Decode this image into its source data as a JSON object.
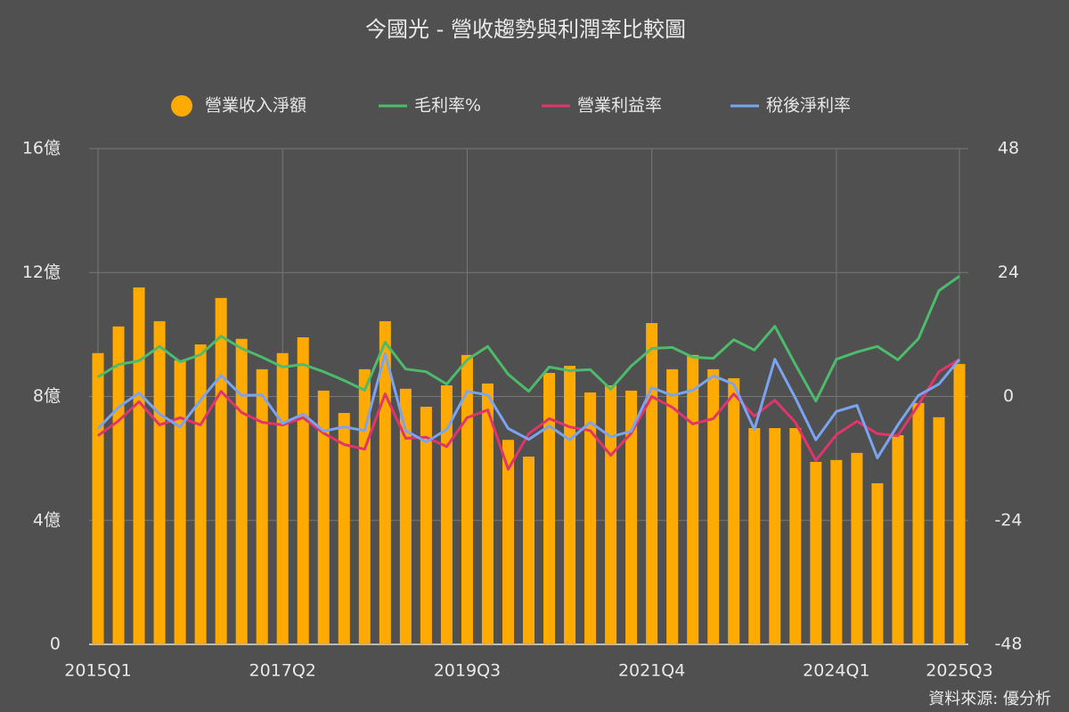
{
  "chart_data": {
    "type": "bar",
    "title": "今國光 - 營收趨勢與利潤率比較圖",
    "source": "資料來源: 優分析",
    "categories": [
      "2015Q1",
      null,
      null,
      null,
      null,
      null,
      null,
      null,
      null,
      "2017Q2",
      null,
      null,
      null,
      null,
      null,
      null,
      null,
      null,
      "2019Q3",
      null,
      null,
      null,
      null,
      null,
      null,
      null,
      null,
      "2021Q4",
      null,
      null,
      null,
      null,
      null,
      null,
      null,
      null,
      "2024Q1",
      null,
      null,
      null,
      null,
      null,
      "2025Q3"
    ],
    "ylim": [
      0,
      16
    ],
    "yticks": [
      0,
      {
        "value": 4,
        "label": "4億"
      },
      {
        "value": 8,
        "label": "8億"
      },
      {
        "value": 12,
        "label": "12億"
      },
      {
        "value": 16,
        "label": "16億"
      }
    ],
    "y2lim": [
      -48,
      48
    ],
    "y2ticks": [
      -48,
      -24,
      0,
      24,
      48
    ],
    "grid": true,
    "legend": "top",
    "series": [
      {
        "name": "營業收入淨額",
        "type": "bar",
        "color": "#ffaa00",
        "axis": "y",
        "values": [
          9.4,
          10.26,
          11.52,
          10.43,
          9.17,
          9.68,
          11.18,
          9.86,
          8.88,
          9.4,
          9.91,
          8.19,
          7.47,
          8.88,
          10.43,
          8.25,
          7.67,
          8.36,
          9.34,
          8.42,
          6.6,
          6.06,
          8.76,
          8.99,
          8.13,
          8.36,
          8.19,
          10.37,
          8.88,
          9.34,
          8.88,
          8.59,
          6.98,
          6.98,
          6.98,
          5.89,
          5.95,
          6.18,
          5.2,
          6.75,
          7.79,
          7.33,
          9.05
        ]
      },
      {
        "name": "毛利率%",
        "type": "line",
        "color": "#4cbb6c",
        "axis": "y2",
        "values": [
          3.8,
          6.2,
          6.9,
          9.7,
          6.7,
          8.1,
          11.7,
          9.3,
          7.6,
          5.7,
          6.2,
          4.8,
          3.1,
          1.2,
          10.5,
          5.3,
          4.8,
          2.4,
          7.1,
          9.7,
          4.3,
          1.0,
          5.7,
          5.0,
          5.2,
          1.4,
          5.9,
          9.3,
          9.5,
          7.6,
          7.4,
          11.0,
          9.0,
          13.6,
          6.2,
          -0.9,
          7.2,
          8.6,
          9.7,
          7.1,
          11.2,
          20.5,
          23.3
        ]
      },
      {
        "name": "營業利益率",
        "type": "line",
        "color": "#e0356a",
        "axis": "y2",
        "values": [
          -7.6,
          -4.7,
          -1.0,
          -5.5,
          -4.1,
          -5.5,
          1.0,
          -3.1,
          -5.0,
          -5.5,
          -4.1,
          -7.1,
          -9.3,
          -10.2,
          0.5,
          -8.1,
          -7.9,
          -9.7,
          -4.1,
          -2.6,
          -14.1,
          -7.2,
          -4.3,
          -5.9,
          -6.6,
          -11.4,
          -7.1,
          0,
          -2.1,
          -5.3,
          -4.3,
          0.5,
          -3.8,
          -0.7,
          -5.0,
          -12.4,
          -7.4,
          -4.8,
          -7.2,
          -7.6,
          -1.6,
          4.8,
          7.2
        ]
      },
      {
        "name": "稅後淨利率",
        "type": "line",
        "color": "#7ba4f0",
        "axis": "y2",
        "values": [
          -6.2,
          -2.1,
          0.7,
          -3.4,
          -5.9,
          -0.7,
          4.1,
          0.2,
          0.3,
          -5.2,
          -3.4,
          -6.7,
          -5.9,
          -6.6,
          8.3,
          -6.6,
          -8.8,
          -6.4,
          1.0,
          0.3,
          -6.2,
          -8.3,
          -5.7,
          -8.4,
          -5.0,
          -7.8,
          -6.7,
          1.7,
          0.2,
          1.2,
          4.0,
          2.4,
          -6.4,
          7.2,
          -0.3,
          -8.4,
          -2.9,
          -1.7,
          -11.9,
          -5.5,
          0.2,
          2.4,
          7.2
        ]
      }
    ]
  }
}
